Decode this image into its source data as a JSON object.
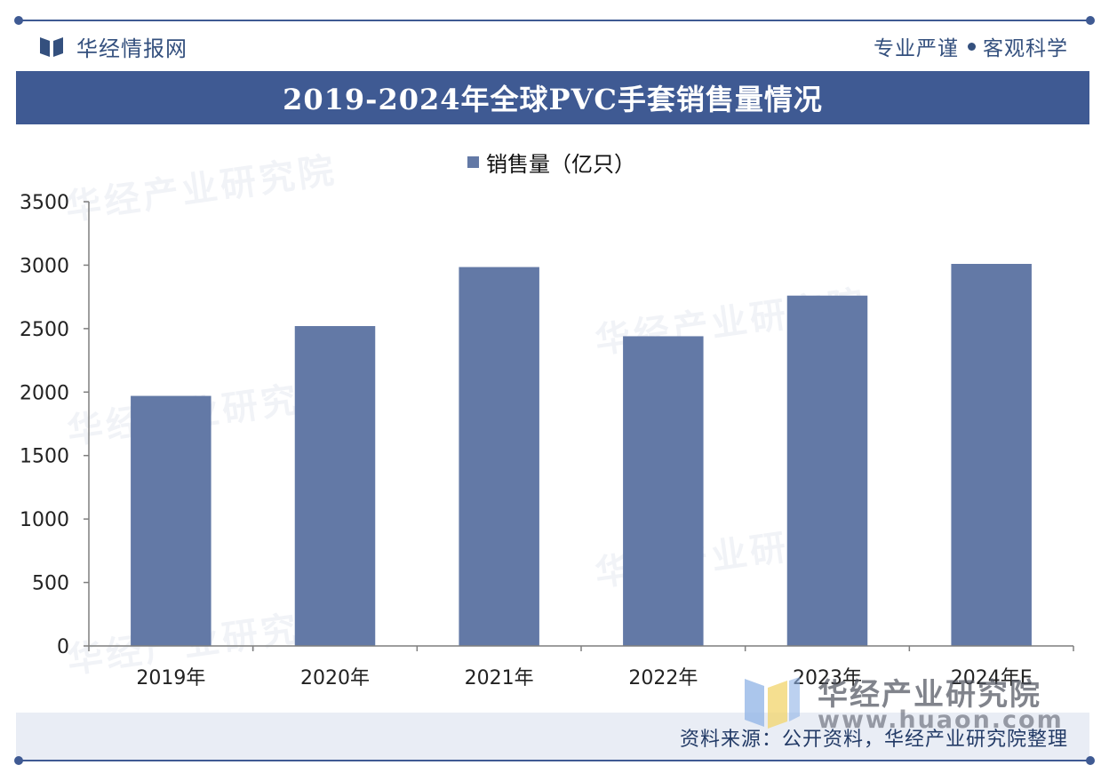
{
  "header": {
    "brand_name": "华经情报网",
    "motto_left": "专业严谨",
    "motto_right": "客观科学"
  },
  "colors": {
    "accent": "#3f5a93",
    "bar": "#6379a6",
    "axis": "#7f7f7f",
    "text": "#222222"
  },
  "icons": [
    "brand-book-icon",
    "huajing-cube-logo-icon"
  ],
  "chart_data": {
    "type": "bar",
    "title": "2019-2024年全球PVC手套销售量情况",
    "categories": [
      "2019年",
      "2020年",
      "2021年",
      "2022年",
      "2023年",
      "2024年E"
    ],
    "series": [
      {
        "name": "销售量（亿只）",
        "values": [
          1970,
          2520,
          2985,
          2440,
          2760,
          3010
        ]
      }
    ],
    "xlabel": "",
    "ylabel": "",
    "ylim": [
      0,
      3500
    ],
    "yticks": [
      0,
      500,
      1000,
      1500,
      2000,
      2500,
      3000,
      3500
    ],
    "grid": false,
    "legend_position": "top-center"
  },
  "watermark": {
    "name": "华经产业研究院",
    "url": "www.huaon.com"
  },
  "footer": {
    "source": "资料来源：公开资料，华经产业研究院整理"
  }
}
